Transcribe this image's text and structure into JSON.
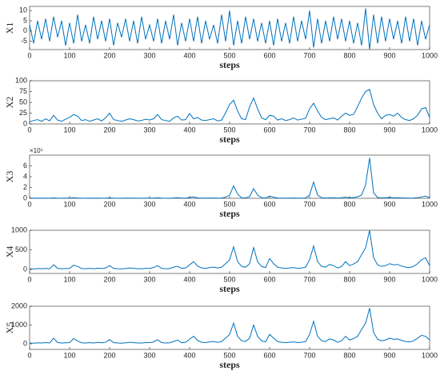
{
  "chart_data": [
    {
      "type": "line",
      "ylabel": "X1",
      "xlabel": "steps",
      "color": "#0072bd",
      "x": [
        0,
        10,
        20,
        30,
        40,
        50,
        60,
        70,
        80,
        90,
        100,
        110,
        120,
        130,
        140,
        150,
        160,
        170,
        180,
        190,
        200,
        210,
        220,
        230,
        240,
        250,
        260,
        270,
        280,
        290,
        300,
        310,
        320,
        330,
        340,
        350,
        360,
        370,
        380,
        390,
        400,
        410,
        420,
        430,
        440,
        450,
        460,
        470,
        480,
        490,
        500,
        510,
        520,
        530,
        540,
        550,
        560,
        570,
        580,
        590,
        600,
        610,
        620,
        630,
        640,
        650,
        660,
        670,
        680,
        690,
        700,
        710,
        720,
        730,
        740,
        750,
        760,
        770,
        780,
        790,
        800,
        810,
        820,
        830,
        840,
        850,
        860,
        870,
        880,
        890,
        900,
        910,
        920,
        930,
        940,
        950,
        960,
        970,
        980,
        990,
        1000
      ],
      "values": [
        3,
        -6,
        5,
        -4,
        6,
        -5,
        7,
        -3,
        5,
        -7,
        4,
        -6,
        8,
        -5,
        3,
        -6,
        7,
        -4,
        5,
        -5,
        6,
        -7,
        4,
        -3,
        6,
        -5,
        5,
        -6,
        7,
        -4,
        3,
        -5,
        6,
        -6,
        5,
        -4,
        8,
        -7,
        4,
        -5,
        6,
        -5,
        7,
        -6,
        5,
        -4,
        3,
        -6,
        8,
        -5,
        10,
        -7,
        5,
        -6,
        7,
        -4,
        6,
        -5,
        4,
        -6,
        5,
        -7,
        6,
        -5,
        4,
        -6,
        7,
        -5,
        5,
        -4,
        10,
        -8,
        6,
        -6,
        5,
        -5,
        7,
        -4,
        6,
        -5,
        5,
        -6,
        4,
        -7,
        11,
        -9,
        8,
        -6,
        7,
        -5,
        6,
        -4,
        5,
        -6,
        7,
        -5,
        6,
        -7,
        5,
        -4,
        3
      ],
      "xlim": [
        0,
        1000
      ],
      "xticks": [
        0,
        100,
        200,
        300,
        400,
        500,
        600,
        700,
        800,
        900,
        1000
      ],
      "ylim": [
        -9,
        12
      ],
      "yticks": [
        -5,
        0,
        5,
        10
      ]
    },
    {
      "type": "line",
      "ylabel": "X2",
      "xlabel": "steps",
      "color": "#0072bd",
      "x": [
        0,
        10,
        20,
        30,
        40,
        50,
        60,
        70,
        80,
        90,
        100,
        110,
        120,
        130,
        140,
        150,
        160,
        170,
        180,
        190,
        200,
        210,
        220,
        230,
        240,
        250,
        260,
        270,
        280,
        290,
        300,
        310,
        320,
        330,
        340,
        350,
        360,
        370,
        380,
        390,
        400,
        410,
        420,
        430,
        440,
        450,
        460,
        470,
        480,
        490,
        500,
        510,
        520,
        530,
        540,
        550,
        560,
        570,
        580,
        590,
        600,
        610,
        620,
        630,
        640,
        650,
        660,
        670,
        680,
        690,
        700,
        710,
        720,
        730,
        740,
        750,
        760,
        770,
        780,
        790,
        800,
        810,
        820,
        830,
        840,
        850,
        860,
        870,
        880,
        890,
        900,
        910,
        920,
        930,
        940,
        950,
        960,
        970,
        980,
        990,
        1000
      ],
      "values": [
        5,
        8,
        10,
        6,
        12,
        7,
        20,
        9,
        6,
        11,
        15,
        22,
        18,
        8,
        10,
        6,
        9,
        12,
        7,
        14,
        25,
        10,
        8,
        6,
        9,
        12,
        10,
        7,
        8,
        11,
        9,
        12,
        22,
        10,
        8,
        6,
        14,
        18,
        9,
        10,
        24,
        12,
        15,
        9,
        8,
        10,
        12,
        7,
        9,
        26,
        45,
        55,
        30,
        12,
        10,
        40,
        60,
        35,
        14,
        10,
        20,
        18,
        9,
        12,
        8,
        10,
        14,
        9,
        11,
        13,
        35,
        48,
        30,
        15,
        10,
        12,
        14,
        9,
        18,
        25,
        20,
        22,
        40,
        60,
        75,
        80,
        45,
        25,
        12,
        20,
        22,
        18,
        25,
        15,
        10,
        8,
        12,
        20,
        35,
        38,
        15
      ],
      "xlim": [
        0,
        1000
      ],
      "xticks": [
        0,
        100,
        200,
        300,
        400,
        500,
        600,
        700,
        800,
        900,
        1000
      ],
      "ylim": [
        0,
        100
      ],
      "yticks": [
        0,
        25,
        50,
        75,
        100
      ]
    },
    {
      "type": "line",
      "ylabel": "X3",
      "xlabel": "steps",
      "color": "#0072bd",
      "y_exponent_label": "×10⁵",
      "x": [
        0,
        10,
        20,
        30,
        40,
        50,
        60,
        70,
        80,
        90,
        100,
        110,
        120,
        130,
        140,
        150,
        160,
        170,
        180,
        190,
        200,
        210,
        220,
        230,
        240,
        250,
        260,
        270,
        280,
        290,
        300,
        310,
        320,
        330,
        340,
        350,
        360,
        370,
        380,
        390,
        400,
        410,
        420,
        430,
        440,
        450,
        460,
        470,
        480,
        490,
        500,
        510,
        520,
        530,
        540,
        550,
        560,
        570,
        580,
        590,
        600,
        610,
        620,
        630,
        640,
        650,
        660,
        670,
        680,
        690,
        700,
        710,
        720,
        730,
        740,
        750,
        760,
        770,
        780,
        790,
        800,
        810,
        820,
        830,
        840,
        850,
        860,
        870,
        880,
        890,
        900,
        910,
        920,
        930,
        940,
        950,
        960,
        970,
        980,
        990,
        1000
      ],
      "values": [
        3000,
        2000,
        4000,
        2000,
        3000,
        2000,
        8000,
        3000,
        2000,
        3000,
        4000,
        12000,
        6000,
        3000,
        2000,
        3000,
        2000,
        3000,
        2000,
        4000,
        8000,
        3000,
        2000,
        2000,
        3000,
        4000,
        3000,
        2000,
        2000,
        3000,
        3000,
        4000,
        10000,
        3000,
        2000,
        2000,
        6000,
        12000,
        3000,
        4000,
        15000,
        25000,
        8000,
        4000,
        3000,
        5000,
        6000,
        4000,
        6000,
        20000,
        60000,
        230000,
        80000,
        10000,
        8000,
        30000,
        180000,
        60000,
        10000,
        5000,
        40000,
        20000,
        6000,
        4000,
        3000,
        4000,
        5000,
        3000,
        4000,
        6000,
        60000,
        300000,
        60000,
        10000,
        6000,
        8000,
        10000,
        4000,
        12000,
        20000,
        10000,
        15000,
        30000,
        60000,
        250000,
        750000,
        100000,
        15000,
        8000,
        12000,
        15000,
        10000,
        12000,
        8000,
        6000,
        4000,
        6000,
        12000,
        25000,
        40000,
        10000
      ],
      "xlim": [
        0,
        1000
      ],
      "xticks": [
        0,
        100,
        200,
        300,
        400,
        500,
        600,
        700,
        800,
        900,
        1000
      ],
      "ylim": [
        0,
        800000
      ],
      "yticks": [
        0,
        {
          "value": 200000,
          "label": "2"
        },
        {
          "value": 400000,
          "label": "4"
        },
        {
          "value": 600000,
          "label": "6"
        }
      ]
    },
    {
      "type": "line",
      "ylabel": "X4",
      "xlabel": "steps",
      "color": "#0072bd",
      "x": [
        0,
        10,
        20,
        30,
        40,
        50,
        60,
        70,
        80,
        90,
        100,
        110,
        120,
        130,
        140,
        150,
        160,
        170,
        180,
        190,
        200,
        210,
        220,
        230,
        240,
        250,
        260,
        270,
        280,
        290,
        300,
        310,
        320,
        330,
        340,
        350,
        360,
        370,
        380,
        390,
        400,
        410,
        420,
        430,
        440,
        450,
        460,
        470,
        480,
        490,
        500,
        510,
        520,
        530,
        540,
        550,
        560,
        570,
        580,
        590,
        600,
        610,
        620,
        630,
        640,
        650,
        660,
        670,
        680,
        690,
        700,
        710,
        720,
        730,
        740,
        750,
        760,
        770,
        780,
        790,
        800,
        810,
        820,
        830,
        840,
        850,
        860,
        870,
        880,
        890,
        900,
        910,
        920,
        930,
        940,
        950,
        960,
        970,
        980,
        990,
        1000
      ],
      "values": [
        20,
        15,
        25,
        20,
        30,
        18,
        120,
        30,
        20,
        25,
        30,
        110,
        80,
        25,
        20,
        30,
        20,
        35,
        25,
        40,
        100,
        30,
        20,
        18,
        25,
        40,
        30,
        20,
        20,
        30,
        30,
        50,
        100,
        30,
        20,
        25,
        60,
        80,
        30,
        40,
        120,
        200,
        90,
        40,
        30,
        50,
        60,
        40,
        60,
        150,
        250,
        580,
        200,
        80,
        60,
        150,
        560,
        200,
        80,
        50,
        280,
        150,
        60,
        40,
        30,
        40,
        50,
        30,
        40,
        60,
        250,
        600,
        200,
        80,
        60,
        130,
        100,
        40,
        80,
        200,
        100,
        140,
        200,
        380,
        550,
        1000,
        300,
        120,
        80,
        100,
        150,
        120,
        130,
        90,
        60,
        50,
        80,
        150,
        250,
        300,
        100
      ],
      "xlim": [
        0,
        1000
      ],
      "xticks": [
        0,
        100,
        200,
        300,
        400,
        500,
        600,
        700,
        800,
        900,
        1000
      ],
      "ylim": [
        -100,
        1000
      ],
      "yticks": [
        0,
        500,
        1000
      ]
    },
    {
      "type": "line",
      "ylabel": "X5",
      "xlabel": "steps",
      "color": "#0072bd",
      "x": [
        0,
        10,
        20,
        30,
        40,
        50,
        60,
        70,
        80,
        90,
        100,
        110,
        120,
        130,
        140,
        150,
        160,
        170,
        180,
        190,
        200,
        210,
        220,
        230,
        240,
        250,
        260,
        270,
        280,
        290,
        300,
        310,
        320,
        330,
        340,
        350,
        360,
        370,
        380,
        390,
        400,
        410,
        420,
        430,
        440,
        450,
        460,
        470,
        480,
        490,
        500,
        510,
        520,
        530,
        540,
        550,
        560,
        570,
        580,
        590,
        600,
        610,
        620,
        630,
        640,
        650,
        660,
        670,
        680,
        690,
        700,
        710,
        720,
        730,
        740,
        750,
        760,
        770,
        780,
        790,
        800,
        810,
        820,
        830,
        840,
        850,
        860,
        870,
        880,
        890,
        900,
        910,
        920,
        930,
        940,
        950,
        960,
        970,
        980,
        990,
        1000
      ],
      "values": [
        40,
        30,
        50,
        40,
        60,
        40,
        300,
        60,
        40,
        50,
        60,
        280,
        150,
        50,
        40,
        60,
        40,
        70,
        50,
        80,
        220,
        60,
        40,
        30,
        50,
        80,
        60,
        40,
        40,
        60,
        60,
        100,
        220,
        60,
        40,
        50,
        120,
        200,
        60,
        80,
        250,
        400,
        180,
        80,
        60,
        100,
        120,
        80,
        120,
        300,
        500,
        1100,
        400,
        160,
        120,
        300,
        1000,
        400,
        160,
        100,
        500,
        300,
        120,
        80,
        60,
        80,
        100,
        60,
        80,
        120,
        500,
        1200,
        400,
        160,
        120,
        260,
        200,
        80,
        160,
        400,
        200,
        280,
        400,
        760,
        1100,
        1900,
        600,
        240,
        160,
        200,
        300,
        240,
        260,
        180,
        120,
        100,
        160,
        300,
        450,
        400,
        200
      ],
      "xlim": [
        0,
        1000
      ],
      "xticks": [
        0,
        100,
        200,
        300,
        400,
        500,
        600,
        700,
        800,
        900,
        1000
      ],
      "ylim": [
        -300,
        2000
      ],
      "yticks": [
        0,
        1000,
        2000
      ]
    }
  ]
}
